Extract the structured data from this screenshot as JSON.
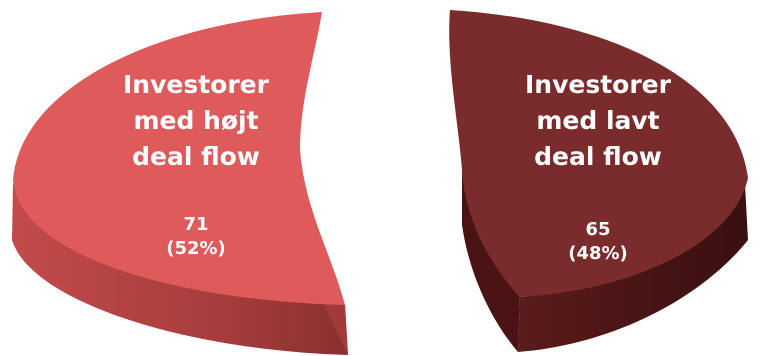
{
  "chart_data": {
    "type": "pie",
    "style": "3d-exploded",
    "categories": [
      "Investorer med højt deal flow",
      "Investorer med lavt deal flow"
    ],
    "values": [
      71,
      65
    ],
    "percentages": [
      "52%",
      "48%"
    ],
    "colors": [
      "#df5a5a",
      "#7a2b2b"
    ],
    "side_colors": [
      "#b94444",
      "#4e1616"
    ],
    "labels": [
      {
        "lines": [
          "Investorer",
          "med højt",
          "deal flow"
        ],
        "value": "71",
        "percent": "(52%)"
      },
      {
        "lines": [
          "Investorer",
          "med lavt",
          "deal flow"
        ],
        "value": "65",
        "percent": "(48%)"
      }
    ]
  }
}
